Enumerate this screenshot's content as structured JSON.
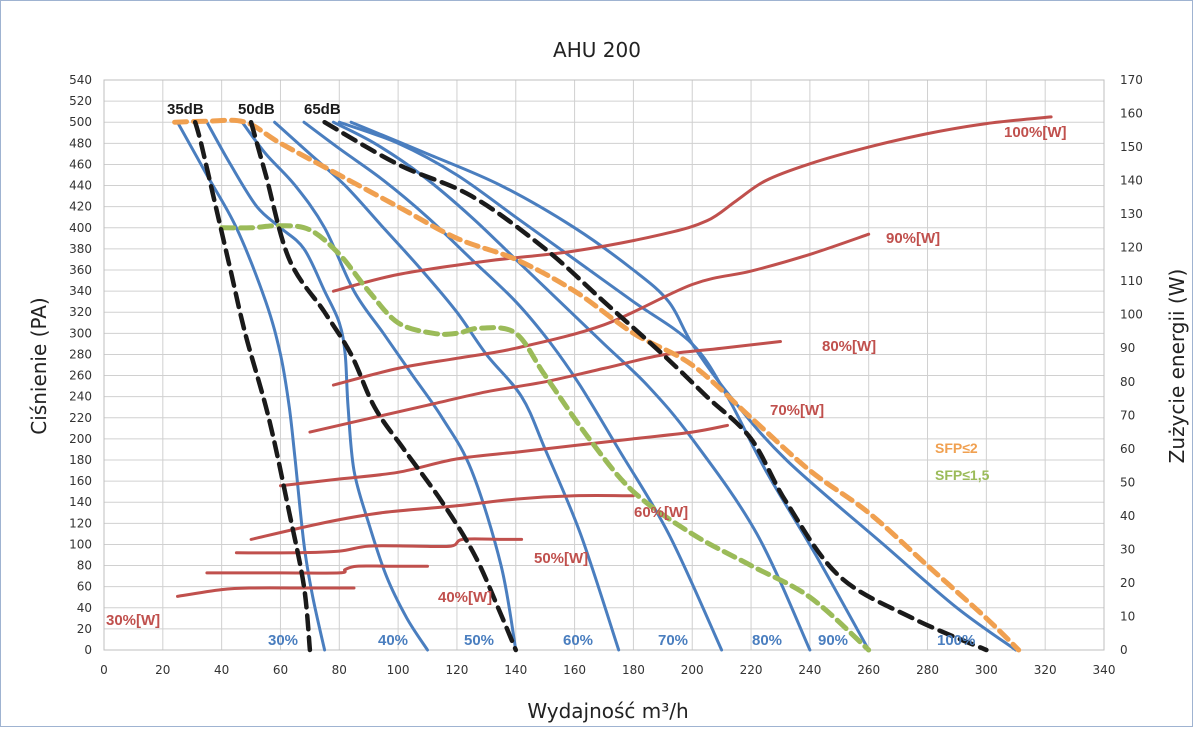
{
  "chart_data": {
    "type": "line",
    "title": "AHU 200",
    "xlabel": "Wydajność m³/h",
    "ylabel": "Ciśnienie (PA)",
    "y2label": "Zużycie energii (W)",
    "xlim": [
      0,
      340
    ],
    "ylim": [
      0,
      540
    ],
    "y2lim": [
      0,
      170
    ],
    "x_ticks": [
      0,
      20,
      40,
      60,
      80,
      100,
      120,
      140,
      160,
      180,
      200,
      220,
      240,
      260,
      280,
      300,
      320,
      340
    ],
    "y_ticks": [
      0,
      20,
      40,
      60,
      80,
      100,
      120,
      140,
      160,
      180,
      200,
      220,
      240,
      260,
      280,
      300,
      320,
      340,
      360,
      380,
      400,
      420,
      440,
      460,
      480,
      500,
      520,
      540
    ],
    "y2_ticks": [
      0,
      10,
      20,
      30,
      40,
      50,
      60,
      70,
      80,
      90,
      100,
      110,
      120,
      130,
      140,
      150,
      160,
      170
    ],
    "grid": true,
    "colors": {
      "fan_curve": "#4a7ebf",
      "power": "#c0504d",
      "noise": "#1a1a1a",
      "sfp2": "#f0a050",
      "sfp15": "#9bbb59"
    },
    "fan_curves": [
      {
        "name": "30%",
        "points": [
          [
            25,
            500
          ],
          [
            35,
            450
          ],
          [
            45,
            400
          ],
          [
            55,
            330
          ],
          [
            60,
            280
          ],
          [
            63,
            230
          ],
          [
            65,
            180
          ],
          [
            68,
            100
          ],
          [
            71,
            50
          ],
          [
            75,
            0
          ]
        ]
      },
      {
        "name": "40%",
        "points": [
          [
            35,
            500
          ],
          [
            43,
            460
          ],
          [
            52,
            420
          ],
          [
            60,
            400
          ],
          [
            68,
            380
          ],
          [
            75,
            340
          ],
          [
            80,
            310
          ],
          [
            82,
            280
          ],
          [
            83,
            230
          ],
          [
            85,
            170
          ],
          [
            90,
            120
          ],
          [
            96,
            70
          ],
          [
            103,
            30
          ],
          [
            110,
            0
          ]
        ]
      },
      {
        "name": "50%",
        "points": [
          [
            47,
            500
          ],
          [
            55,
            470
          ],
          [
            65,
            440
          ],
          [
            75,
            400
          ],
          [
            85,
            340
          ],
          [
            95,
            300
          ],
          [
            105,
            260
          ],
          [
            115,
            220
          ],
          [
            125,
            170
          ],
          [
            135,
            80
          ],
          [
            140,
            0
          ]
        ]
      },
      {
        "name": "60%",
        "points": [
          [
            58,
            500
          ],
          [
            70,
            470
          ],
          [
            82,
            440
          ],
          [
            95,
            400
          ],
          [
            108,
            360
          ],
          [
            120,
            320
          ],
          [
            130,
            280
          ],
          [
            142,
            240
          ],
          [
            150,
            190
          ],
          [
            162,
            110
          ],
          [
            175,
            0
          ]
        ]
      },
      {
        "name": "70%",
        "points": [
          [
            68,
            500
          ],
          [
            80,
            475
          ],
          [
            95,
            445
          ],
          [
            110,
            410
          ],
          [
            125,
            370
          ],
          [
            140,
            330
          ],
          [
            152,
            290
          ],
          [
            162,
            250
          ],
          [
            175,
            190
          ],
          [
            192,
            110
          ],
          [
            210,
            0
          ]
        ]
      },
      {
        "name": "80%",
        "points": [
          [
            78,
            500
          ],
          [
            92,
            480
          ],
          [
            108,
            450
          ],
          [
            125,
            410
          ],
          [
            140,
            370
          ],
          [
            155,
            330
          ],
          [
            170,
            290
          ],
          [
            185,
            250
          ],
          [
            200,
            200
          ],
          [
            222,
            110
          ],
          [
            240,
            0
          ]
        ]
      },
      {
        "name": "90%",
        "points": [
          [
            80,
            500
          ],
          [
            100,
            480
          ],
          [
            120,
            450
          ],
          [
            140,
            410
          ],
          [
            160,
            370
          ],
          [
            180,
            330
          ],
          [
            200,
            290
          ],
          [
            212,
            240
          ],
          [
            225,
            170
          ],
          [
            242,
            90
          ],
          [
            260,
            0
          ]
        ]
      },
      {
        "name": "100%",
        "points": [
          [
            84,
            500
          ],
          [
            110,
            470
          ],
          [
            135,
            440
          ],
          [
            160,
            400
          ],
          [
            180,
            360
          ],
          [
            192,
            330
          ],
          [
            200,
            290
          ],
          [
            213,
            240
          ],
          [
            232,
            180
          ],
          [
            265,
            100
          ],
          [
            290,
            40
          ],
          [
            310,
            0
          ]
        ]
      }
    ],
    "fan_labels": [
      "30%",
      "40%",
      "50%",
      "60%",
      "70%",
      "80%",
      "90%",
      "100%"
    ],
    "power_curves": [
      {
        "name": "30%[W]",
        "label": "30%[W]",
        "points": [
          [
            25,
            16
          ],
          [
            40,
            18
          ],
          [
            50,
            18.5
          ],
          [
            70,
            18.5
          ],
          [
            85,
            18.5
          ]
        ]
      },
      {
        "name": "40%[W]",
        "label": "40%[W]",
        "points": [
          [
            35,
            23
          ],
          [
            60,
            23
          ],
          [
            80,
            23
          ],
          [
            82,
            24
          ],
          [
            86,
            25
          ],
          [
            97,
            25
          ],
          [
            110,
            25
          ]
        ]
      },
      {
        "name": "50%[W]",
        "label": "50%[W]",
        "points": [
          [
            45,
            29
          ],
          [
            65,
            29
          ],
          [
            80,
            29.5
          ],
          [
            90,
            31
          ],
          [
            105,
            31
          ],
          [
            118,
            31
          ],
          [
            122,
            33
          ],
          [
            135,
            33
          ],
          [
            142,
            33
          ]
        ]
      },
      {
        "name": "60%[W]",
        "label": "60%[W]",
        "points": [
          [
            50,
            33
          ],
          [
            75,
            38
          ],
          [
            95,
            41
          ],
          [
            120,
            43
          ],
          [
            140,
            45
          ],
          [
            160,
            46
          ],
          [
            180,
            46
          ]
        ]
      },
      {
        "name": "70%[W]",
        "label": "70%[W]",
        "points": [
          [
            60,
            49
          ],
          [
            80,
            51
          ],
          [
            100,
            53
          ],
          [
            120,
            57
          ],
          [
            140,
            59
          ],
          [
            160,
            61
          ],
          [
            180,
            63
          ],
          [
            200,
            65
          ],
          [
            212,
            67
          ]
        ]
      },
      {
        "name": "80%[W]",
        "label": "80%[W]",
        "points": [
          [
            70,
            65
          ],
          [
            90,
            69
          ],
          [
            110,
            73
          ],
          [
            130,
            77
          ],
          [
            150,
            80
          ],
          [
            170,
            84
          ],
          [
            190,
            88
          ],
          [
            210,
            90
          ],
          [
            230,
            92
          ]
        ]
      },
      {
        "name": "90%[W]",
        "label": "90%[W]",
        "points": [
          [
            78,
            79
          ],
          [
            100,
            84
          ],
          [
            120,
            87
          ],
          [
            140,
            90
          ],
          [
            170,
            97
          ],
          [
            200,
            109
          ],
          [
            220,
            113
          ],
          [
            240,
            118
          ],
          [
            260,
            124
          ]
        ]
      },
      {
        "name": "100%[W]",
        "label": "100%[W]",
        "points": [
          [
            78,
            107
          ],
          [
            100,
            112
          ],
          [
            130,
            116
          ],
          [
            160,
            119
          ],
          [
            190,
            124
          ],
          [
            205,
            128
          ],
          [
            215,
            134
          ],
          [
            225,
            140
          ],
          [
            240,
            145
          ],
          [
            260,
            150
          ],
          [
            280,
            154
          ],
          [
            300,
            157
          ],
          [
            322,
            159
          ]
        ]
      }
    ],
    "noise_curves": [
      {
        "name": "35dB",
        "label": "35dB",
        "points": [
          [
            31,
            500
          ],
          [
            33,
            480
          ],
          [
            38,
            420
          ],
          [
            43,
            360
          ],
          [
            48,
            300
          ],
          [
            56,
            220
          ],
          [
            63,
            130
          ],
          [
            68,
            60
          ],
          [
            70,
            0
          ]
        ]
      },
      {
        "name": "50dB",
        "label": "50dB",
        "points": [
          [
            50,
            500
          ],
          [
            55,
            450
          ],
          [
            63,
            370
          ],
          [
            75,
            320
          ],
          [
            84,
            280
          ],
          [
            92,
            230
          ],
          [
            102,
            190
          ],
          [
            115,
            140
          ],
          [
            126,
            90
          ],
          [
            134,
            40
          ],
          [
            140,
            0
          ]
        ]
      },
      {
        "name": "65dB",
        "label": "65dB",
        "points": [
          [
            75,
            500
          ],
          [
            100,
            460
          ],
          [
            125,
            430
          ],
          [
            150,
            380
          ],
          [
            170,
            330
          ],
          [
            190,
            280
          ],
          [
            205,
            240
          ],
          [
            220,
            200
          ],
          [
            232,
            140
          ],
          [
            250,
            70
          ],
          [
            275,
            30
          ],
          [
            300,
            0
          ]
        ]
      }
    ],
    "sfp_curves": [
      {
        "name": "SFP≤2",
        "label": "SFP≤2",
        "points": [
          [
            24,
            500
          ],
          [
            35,
            501
          ],
          [
            48,
            500
          ],
          [
            60,
            480
          ],
          [
            80,
            450
          ],
          [
            100,
            420
          ],
          [
            120,
            390
          ],
          [
            140,
            370
          ],
          [
            160,
            340
          ],
          [
            180,
            300
          ],
          [
            200,
            270
          ],
          [
            220,
            220
          ],
          [
            240,
            170
          ],
          [
            260,
            130
          ],
          [
            280,
            80
          ],
          [
            300,
            30
          ],
          [
            311,
            0
          ]
        ]
      },
      {
        "name": "SFP≤1,5",
        "label": "SFP≤1,5",
        "points": [
          [
            40,
            400
          ],
          [
            50,
            400
          ],
          [
            60,
            402
          ],
          [
            70,
            398
          ],
          [
            80,
            375
          ],
          [
            90,
            340
          ],
          [
            100,
            310
          ],
          [
            112,
            300
          ],
          [
            120,
            300
          ],
          [
            128,
            305
          ],
          [
            140,
            300
          ],
          [
            150,
            260
          ],
          [
            165,
            200
          ],
          [
            180,
            150
          ],
          [
            200,
            110
          ],
          [
            220,
            80
          ],
          [
            240,
            50
          ],
          [
            260,
            0
          ]
        ]
      }
    ]
  }
}
